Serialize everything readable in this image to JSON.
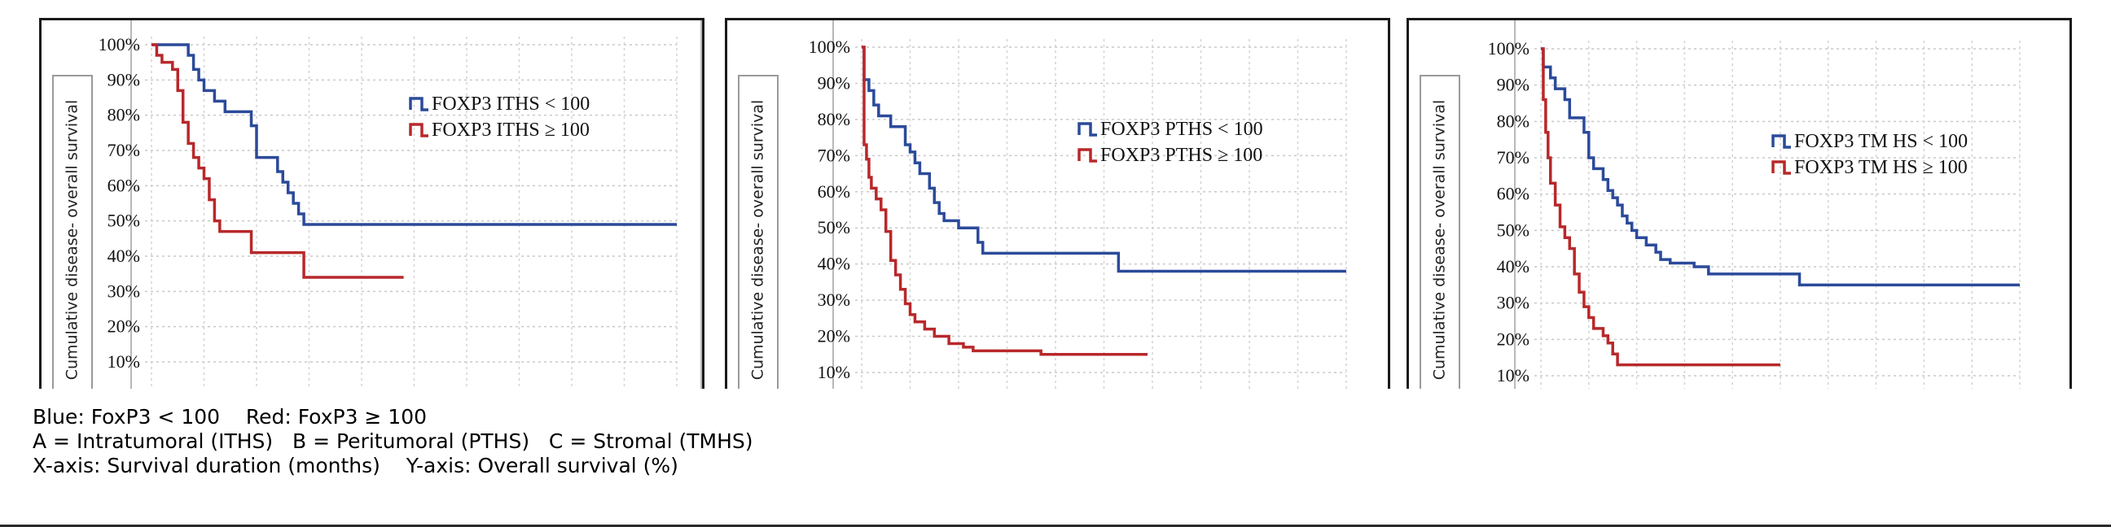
{
  "chart_data": [
    {
      "type": "line",
      "ylabel": "Cumulative disease- overall survival",
      "yticks": [
        "10%",
        "20%",
        "30%",
        "40%",
        "50%",
        "60%",
        "70%",
        "80%",
        "90%",
        "100%"
      ],
      "ylim": [
        0,
        100
      ],
      "grid": true,
      "legend_position": "top-right",
      "series": [
        {
          "name": "FOXP3 ITHS < 100",
          "color": "#2b4a9a",
          "steps": [
            [
              0,
              100
            ],
            [
              5,
              100
            ],
            [
              7,
              97
            ],
            [
              8,
              93
            ],
            [
              9,
              90
            ],
            [
              10,
              87
            ],
            [
              12,
              84
            ],
            [
              14,
              81
            ],
            [
              18,
              81
            ],
            [
              19,
              77
            ],
            [
              20,
              68
            ],
            [
              23,
              68
            ],
            [
              24,
              64
            ],
            [
              25,
              61
            ],
            [
              26,
              58
            ],
            [
              27,
              55
            ],
            [
              28,
              52
            ],
            [
              29,
              49
            ],
            [
              100,
              49
            ]
          ]
        },
        {
          "name": "FOXP3 ITHS ≥ 100",
          "color": "#b8282a",
          "steps": [
            [
              0,
              100
            ],
            [
              1,
              97
            ],
            [
              2,
              95
            ],
            [
              4,
              93
            ],
            [
              5,
              87
            ],
            [
              6,
              78
            ],
            [
              7,
              72
            ],
            [
              8,
              68
            ],
            [
              9,
              65
            ],
            [
              10,
              62
            ],
            [
              11,
              56
            ],
            [
              12,
              50
            ],
            [
              13,
              47
            ],
            [
              19,
              41
            ],
            [
              29,
              34
            ],
            [
              48,
              34
            ]
          ]
        }
      ]
    },
    {
      "type": "line",
      "ylabel": "Cumulative disease- overall survival",
      "yticks": [
        "10%",
        "20%",
        "30%",
        "40%",
        "50%",
        "60%",
        "70%",
        "80%",
        "90%",
        "100%"
      ],
      "ylim": [
        0,
        100
      ],
      "grid": true,
      "legend_position": "top-right",
      "series": [
        {
          "name": "FOXP3 PTHS < 100",
          "color": "#2b4a9a",
          "steps": [
            [
              0,
              100
            ],
            [
              0.5,
              91
            ],
            [
              1.5,
              88
            ],
            [
              2.5,
              84
            ],
            [
              3.5,
              81
            ],
            [
              6,
              78
            ],
            [
              9,
              73
            ],
            [
              10,
              71
            ],
            [
              11,
              68
            ],
            [
              12,
              65
            ],
            [
              14,
              61
            ],
            [
              15,
              57
            ],
            [
              16,
              54
            ],
            [
              17,
              52
            ],
            [
              20,
              50
            ],
            [
              24,
              46
            ],
            [
              25,
              43
            ],
            [
              52,
              43
            ],
            [
              53,
              38
            ],
            [
              100,
              38
            ]
          ]
        },
        {
          "name": "FOXP3 PTHS ≥ 100",
          "color": "#b8282a",
          "steps": [
            [
              0,
              100
            ],
            [
              0.5,
              73
            ],
            [
              1,
              69
            ],
            [
              1.5,
              64
            ],
            [
              2,
              61
            ],
            [
              3,
              58
            ],
            [
              4,
              55
            ],
            [
              5,
              49
            ],
            [
              6,
              41
            ],
            [
              7,
              37
            ],
            [
              8,
              33
            ],
            [
              9,
              29
            ],
            [
              10,
              26
            ],
            [
              11,
              24
            ],
            [
              13,
              22
            ],
            [
              15,
              20
            ],
            [
              18,
              18
            ],
            [
              21,
              17
            ],
            [
              23,
              16
            ],
            [
              37,
              15
            ],
            [
              59,
              15
            ]
          ]
        }
      ]
    },
    {
      "type": "line",
      "ylabel": "Cumulative disease- overall survival",
      "yticks": [
        "10%",
        "20%",
        "30%",
        "40%",
        "50%",
        "60%",
        "70%",
        "80%",
        "90%",
        "100%"
      ],
      "ylim": [
        0,
        100
      ],
      "grid": true,
      "legend_position": "top-right",
      "series": [
        {
          "name": "FOXP3 TM HS < 100",
          "color": "#2b4a9a",
          "steps": [
            [
              0,
              100
            ],
            [
              0.5,
              95
            ],
            [
              2,
              92
            ],
            [
              3,
              89
            ],
            [
              5,
              86
            ],
            [
              6,
              81
            ],
            [
              9,
              77
            ],
            [
              10,
              70
            ],
            [
              11,
              67
            ],
            [
              13,
              64
            ],
            [
              14,
              61
            ],
            [
              15,
              59
            ],
            [
              16,
              57
            ],
            [
              17,
              54
            ],
            [
              18,
              52
            ],
            [
              19,
              50
            ],
            [
              20,
              48
            ],
            [
              22,
              46
            ],
            [
              24,
              44
            ],
            [
              25,
              42
            ],
            [
              27,
              41
            ],
            [
              32,
              40
            ],
            [
              35,
              38
            ],
            [
              53,
              38
            ],
            [
              54,
              35
            ],
            [
              100,
              35
            ]
          ]
        },
        {
          "name": "FOXP3 TM HS ≥ 100",
          "color": "#b8282a",
          "steps": [
            [
              0,
              100
            ],
            [
              0.5,
              86
            ],
            [
              1,
              77
            ],
            [
              1.5,
              70
            ],
            [
              2,
              63
            ],
            [
              3,
              57
            ],
            [
              4,
              51
            ],
            [
              5,
              48
            ],
            [
              6,
              45
            ],
            [
              7,
              38
            ],
            [
              8,
              33
            ],
            [
              9,
              29
            ],
            [
              10,
              26
            ],
            [
              11,
              23
            ],
            [
              13,
              21
            ],
            [
              14,
              19
            ],
            [
              15,
              16
            ],
            [
              16,
              13
            ],
            [
              50,
              13
            ]
          ]
        }
      ]
    }
  ],
  "caption": {
    "line1": "Blue: FoxP3 < 100    Red: FoxP3 ≥ 100",
    "line2": "A = Intratumoral (ITHS)   B = Peritumoral (PTHS)   C = Stromal (TMHS)",
    "line3": "X-axis: Survival duration (months)    Y-axis: Overall survival (%)"
  }
}
